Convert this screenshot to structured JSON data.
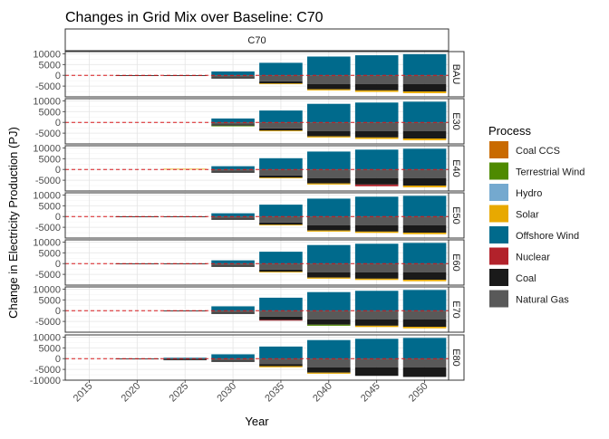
{
  "chart_data": {
    "type": "bar",
    "title": "Changes in Grid Mix over Baseline: C70",
    "facet_column_label": "C70",
    "xlabel": "Year",
    "ylabel": "Change in Electricity Production (PJ)",
    "x_ticks": [
      "2015",
      "2020",
      "2025",
      "2030",
      "2035",
      "2040",
      "2045",
      "2050"
    ],
    "y_ticks": [
      10000,
      5000,
      0,
      -5000
    ],
    "y_ticks_last_panel": [
      10000,
      5000,
      0,
      -5000,
      -10000
    ],
    "ylim": [
      -10000,
      11000
    ],
    "reference_line": {
      "y": 0,
      "style": "dashed",
      "color": "#d7191c"
    },
    "grid": true,
    "legend": {
      "title": "Process",
      "position": "right",
      "entries": [
        {
          "name": "Coal CCS",
          "color": "#c96a00"
        },
        {
          "name": "Terrestrial Wind",
          "color": "#4e8a00"
        },
        {
          "name": "Hydro",
          "color": "#74a9cf"
        },
        {
          "name": "Solar",
          "color": "#e8a900"
        },
        {
          "name": "Offshore Wind",
          "color": "#006a8c"
        },
        {
          "name": "Nuclear",
          "color": "#b2222b"
        },
        {
          "name": "Coal",
          "color": "#1a1a1a"
        },
        {
          "name": "Natural Gas",
          "color": "#595959"
        }
      ]
    },
    "panels": [
      {
        "label": "BAU",
        "values": {
          "2020": {
            "Coal": -150
          },
          "2025": {
            "Coal": -150
          },
          "2030": {
            "Offshore Wind": 1800,
            "Natural Gas": -1000,
            "Coal": -500
          },
          "2035": {
            "Offshore Wind": 5800,
            "Natural Gas": -2800,
            "Coal": -1000,
            "Solar": -300
          },
          "2040": {
            "Offshore Wind": 8700,
            "Natural Gas": -4000,
            "Coal": -2500,
            "Solar": -500
          },
          "2045": {
            "Offshore Wind": 9300,
            "Natural Gas": -4000,
            "Coal": -3000,
            "Solar": -700
          },
          "2050": {
            "Offshore Wind": 9800,
            "Natural Gas": -4000,
            "Coal": -3500,
            "Solar": -800
          }
        }
      },
      {
        "label": "E30",
        "values": {
          "2030": {
            "Offshore Wind": 1800,
            "Natural Gas": -1000,
            "Coal": -500,
            "Terrestrial Wind": -150
          },
          "2035": {
            "Offshore Wind": 5500,
            "Natural Gas": -2800,
            "Coal": -1000,
            "Solar": -300
          },
          "2040": {
            "Offshore Wind": 8600,
            "Natural Gas": -4000,
            "Coal": -2500,
            "Solar": -500
          },
          "2045": {
            "Offshore Wind": 9200,
            "Natural Gas": -4000,
            "Coal": -3000,
            "Solar": -700
          },
          "2050": {
            "Offshore Wind": 9600,
            "Natural Gas": -4000,
            "Coal": -3500,
            "Solar": -800
          }
        }
      },
      {
        "label": "E40",
        "values": {
          "2025": {
            "Solar": 300
          },
          "2030": {
            "Offshore Wind": 1500,
            "Natural Gas": -1000,
            "Coal": -500
          },
          "2035": {
            "Offshore Wind": 5200,
            "Natural Gas": -2800,
            "Coal": -1000,
            "Solar": -300
          },
          "2040": {
            "Offshore Wind": 8300,
            "Natural Gas": -4000,
            "Coal": -2500,
            "Solar": -500
          },
          "2045": {
            "Offshore Wind": 9200,
            "Natural Gas": -4000,
            "Coal": -3000,
            "Nuclear": -800
          },
          "2050": {
            "Offshore Wind": 9600,
            "Natural Gas": -4000,
            "Coal": -3500,
            "Solar": -800
          }
        }
      },
      {
        "label": "E50",
        "values": {
          "2020": {
            "Coal": -150
          },
          "2025": {
            "Coal": -100
          },
          "2030": {
            "Offshore Wind": 1500,
            "Natural Gas": -1000,
            "Coal": -500
          },
          "2035": {
            "Offshore Wind": 5500,
            "Natural Gas": -2800,
            "Coal": -1000,
            "Solar": -300
          },
          "2040": {
            "Offshore Wind": 8300,
            "Natural Gas": -4000,
            "Coal": -2500,
            "Solar": -500
          },
          "2045": {
            "Offshore Wind": 9200,
            "Natural Gas": -4000,
            "Coal": -3000,
            "Solar": -600
          },
          "2050": {
            "Offshore Wind": 9600,
            "Natural Gas": -4000,
            "Coal": -3500,
            "Solar": -700
          }
        }
      },
      {
        "label": "E60",
        "values": {
          "2020": {
            "Coal": -100
          },
          "2025": {
            "Coal": -100
          },
          "2030": {
            "Offshore Wind": 1500,
            "Natural Gas": -1000,
            "Coal": -500
          },
          "2035": {
            "Offshore Wind": 5500,
            "Natural Gas": -2800,
            "Coal": -1000,
            "Solar": -300
          },
          "2040": {
            "Offshore Wind": 8600,
            "Natural Gas": -4000,
            "Coal": -2500,
            "Solar": -500
          },
          "2045": {
            "Offshore Wind": 9200,
            "Natural Gas": -4000,
            "Coal": -3000,
            "Solar": -600
          },
          "2050": {
            "Offshore Wind": 9600,
            "Natural Gas": -4000,
            "Coal": -3500,
            "Solar": -700
          }
        }
      },
      {
        "label": "E70",
        "values": {
          "2025": {
            "Coal": -150
          },
          "2030": {
            "Offshore Wind": 2000,
            "Natural Gas": -1000,
            "Coal": -500
          },
          "2035": {
            "Offshore Wind": 6000,
            "Natural Gas": -2800,
            "Coal": -1500,
            "Nuclear": -300
          },
          "2040": {
            "Offshore Wind": 8600,
            "Natural Gas": -4000,
            "Coal": -2500,
            "Terrestrial Wind": -500
          },
          "2045": {
            "Offshore Wind": 9200,
            "Natural Gas": -4000,
            "Coal": -3000,
            "Solar": -600
          },
          "2050": {
            "Offshore Wind": 9600,
            "Natural Gas": -4000,
            "Coal": -3500,
            "Solar": -700
          }
        }
      },
      {
        "label": "E80",
        "values": {
          "2020": {
            "Coal": -150
          },
          "2025": {
            "Offshore Wind": 400,
            "Natural Gas": -300,
            "Coal": -400
          },
          "2030": {
            "Offshore Wind": 2000,
            "Natural Gas": -1000,
            "Coal": -500
          },
          "2035": {
            "Offshore Wind": 5600,
            "Natural Gas": -2500,
            "Coal": -1000,
            "Solar": -500
          },
          "2040": {
            "Offshore Wind": 8600,
            "Natural Gas": -4000,
            "Coal": -2500,
            "Solar": -500
          },
          "2045": {
            "Offshore Wind": 9200,
            "Natural Gas": -4000,
            "Coal": -4000
          },
          "2050": {
            "Offshore Wind": 9600,
            "Natural Gas": -4000,
            "Coal": -4500
          }
        }
      }
    ]
  }
}
